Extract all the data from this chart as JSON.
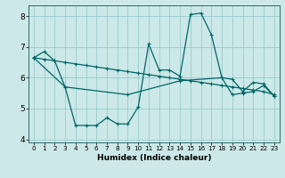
{
  "xlabel": "Humidex (Indice chaleur)",
  "bg_color": "#cce8e8",
  "grid_color": "#99cccc",
  "line_color": "#006666",
  "xlim": [
    -0.5,
    23.5
  ],
  "ylim": [
    3.9,
    8.35
  ],
  "yticks": [
    4,
    5,
    6,
    7,
    8
  ],
  "xticks": [
    0,
    1,
    2,
    3,
    4,
    5,
    6,
    7,
    8,
    9,
    10,
    11,
    12,
    13,
    14,
    15,
    16,
    17,
    18,
    19,
    20,
    21,
    22,
    23
  ],
  "series1_x": [
    0,
    1,
    2,
    3,
    4,
    5,
    6,
    7,
    8,
    9,
    10,
    11,
    12,
    13,
    14,
    15,
    16,
    17,
    18,
    19,
    20,
    21,
    22,
    23
  ],
  "series1_y": [
    6.65,
    6.85,
    6.55,
    5.7,
    4.45,
    4.45,
    4.45,
    4.7,
    4.5,
    4.5,
    5.05,
    7.1,
    6.25,
    6.25,
    6.05,
    8.05,
    8.1,
    7.4,
    6.0,
    5.95,
    5.55,
    5.85,
    5.8,
    5.4
  ],
  "series2_x": [
    0,
    1,
    2,
    3,
    4,
    5,
    6,
    7,
    8,
    9,
    10,
    11,
    12,
    13,
    14,
    15,
    16,
    17,
    18,
    19,
    20,
    21,
    22,
    23
  ],
  "series2_y": [
    6.65,
    6.6,
    6.55,
    6.5,
    6.45,
    6.4,
    6.35,
    6.3,
    6.25,
    6.2,
    6.15,
    6.1,
    6.05,
    6.0,
    5.95,
    5.9,
    5.85,
    5.8,
    5.75,
    5.7,
    5.65,
    5.6,
    5.55,
    5.45
  ],
  "series3_x": [
    0,
    3,
    9,
    14,
    18,
    19,
    20,
    21,
    22,
    23
  ],
  "series3_y": [
    6.65,
    5.7,
    5.45,
    5.9,
    6.0,
    5.45,
    5.5,
    5.55,
    5.75,
    5.4
  ]
}
